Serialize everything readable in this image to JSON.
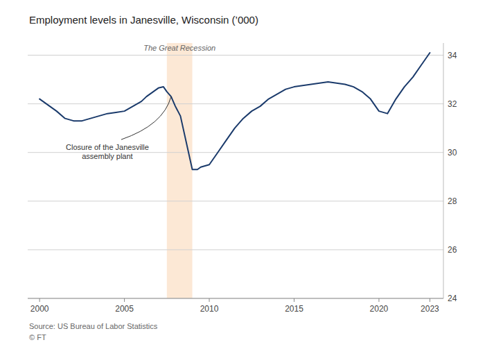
{
  "chart_data": {
    "type": "line",
    "title": "Employment levels in Janesville, Wisconsin (’000)",
    "source": "Source: US Bureau of Labor Statistics",
    "credit": "© FT",
    "color": "#1a3a6b",
    "background_color": "#ffffff",
    "grid": true,
    "x": [
      2000.0,
      2001.0,
      2001.5,
      2002.0,
      2002.5,
      2003.0,
      2003.5,
      2004.0,
      2004.5,
      2005.0,
      2005.5,
      2006.0,
      2006.3,
      2006.7,
      2007.0,
      2007.3,
      2007.5,
      2007.75,
      2008.0,
      2008.3,
      2009.0,
      2009.3,
      2009.5,
      2010.0,
      2010.5,
      2011.0,
      2011.5,
      2012.0,
      2012.5,
      2013.0,
      2013.5,
      2014.0,
      2014.5,
      2015.0,
      2015.5,
      2016.0,
      2016.5,
      2017.0,
      2017.5,
      2018.0,
      2018.5,
      2019.0,
      2019.5,
      2020.0,
      2020.5,
      2021.0,
      2021.5,
      2022.0,
      2022.5,
      2023.0
    ],
    "values": [
      32.2,
      31.7,
      31.4,
      31.3,
      31.3,
      31.4,
      31.5,
      31.6,
      31.65,
      31.7,
      31.9,
      32.1,
      32.3,
      32.5,
      32.65,
      32.7,
      32.5,
      32.3,
      31.9,
      31.5,
      29.3,
      29.3,
      29.4,
      29.5,
      30.0,
      30.5,
      31.0,
      31.4,
      31.7,
      31.9,
      32.2,
      32.4,
      32.6,
      32.7,
      32.75,
      32.8,
      32.85,
      32.9,
      32.85,
      32.8,
      32.7,
      32.5,
      32.2,
      31.7,
      31.6,
      32.2,
      32.7,
      33.1,
      33.6,
      34.1
    ],
    "xlim": [
      1999.3,
      2023.8
    ],
    "xticks": [
      2000,
      2005,
      2010,
      2015,
      2020,
      2023
    ],
    "ylim": [
      24,
      34.5
    ],
    "yticks": [
      24,
      26,
      28,
      30,
      32,
      34
    ],
    "recession": {
      "start": 2007.5,
      "end": 2009.0,
      "label": "The Great Recession",
      "color": "#fce8d5"
    },
    "annotation": {
      "text": "Closure of the Janesville\nassembly plant",
      "x": 2007.75,
      "y": 32.3
    }
  }
}
